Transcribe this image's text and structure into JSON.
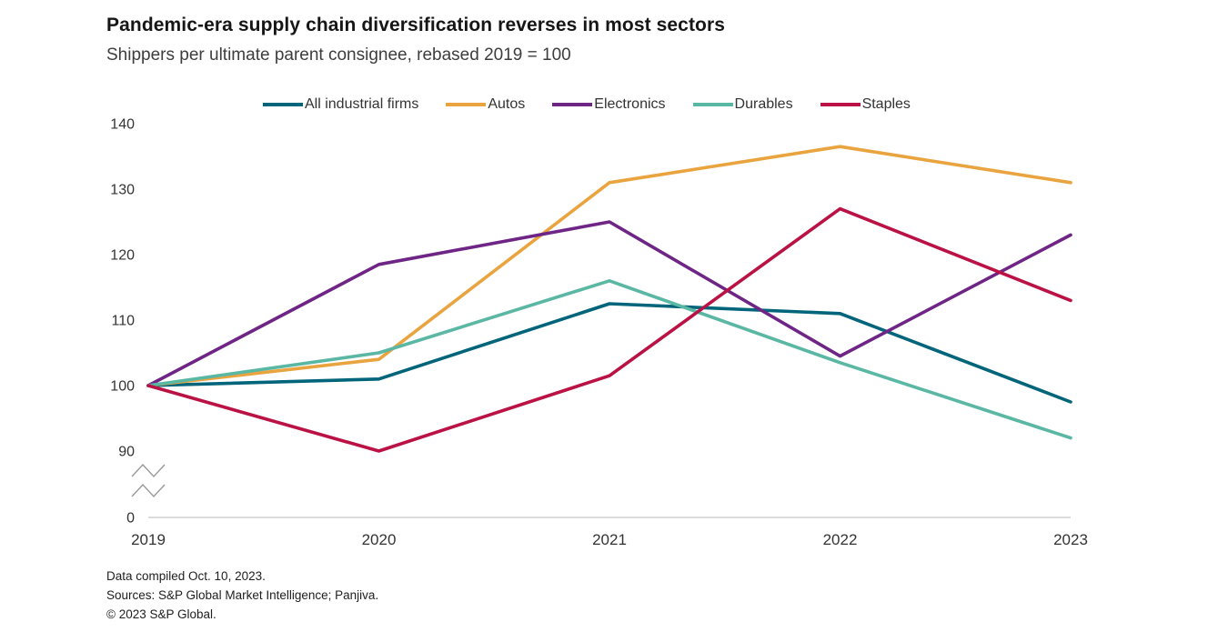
{
  "title": "Pandemic-era supply chain diversification reverses in most sectors",
  "subtitle": "Shippers per ultimate parent consignee, rebased 2019 = 100",
  "footer": {
    "line1": "Data compiled Oct. 10, 2023.",
    "line2": "Sources: S&P Global Market Intelligence; Panjiva.",
    "line3": "© 2023 S&P Global."
  },
  "chart_data": {
    "type": "line",
    "title": "Pandemic-era supply chain diversification reverses in most sectors",
    "subtitle": "Shippers per ultimate parent consignee, rebased 2019 = 100",
    "x": [
      "2019",
      "2020",
      "2021",
      "2022",
      "2023"
    ],
    "series": [
      {
        "name": "All industrial firms",
        "color": "#00657a",
        "values": [
          100,
          101,
          112.5,
          111,
          97.5
        ]
      },
      {
        "name": "Autos",
        "color": "#e9a43f",
        "values": [
          100,
          104,
          131,
          136.5,
          131
        ]
      },
      {
        "name": "Electronics",
        "color": "#6e2585",
        "values": [
          100,
          118.5,
          125,
          104.5,
          123
        ]
      },
      {
        "name": "Durables",
        "color": "#59b7a3",
        "values": [
          100,
          105,
          116,
          103.5,
          92
        ]
      },
      {
        "name": "Staples",
        "color": "#ba1244",
        "values": [
          100,
          90,
          101.5,
          127,
          113
        ]
      }
    ],
    "y_ticks": [
      140,
      130,
      120,
      110,
      100,
      90
    ],
    "baseline_label": "0",
    "y_axis_break": true,
    "ylim": [
      0,
      140
    ],
    "grid": false,
    "legend_position": "top",
    "axis_color": "#c8c8c8"
  }
}
